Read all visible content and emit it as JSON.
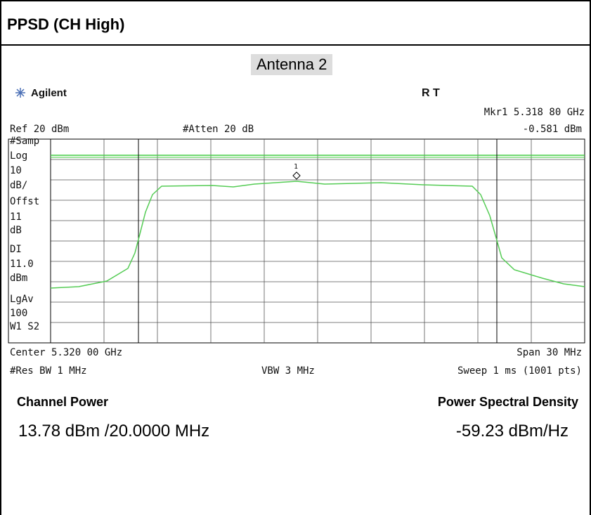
{
  "header": {
    "title": "PPSD (CH High)"
  },
  "subtitle": "Antenna 2",
  "analyzer": {
    "brand": "Agilent",
    "status": "R   T",
    "marker_freq": "Mkr1  5.318 80 GHz",
    "marker_level": "-0.581 dBm",
    "ref": "Ref 20 dBm",
    "atten": "#Atten 20 dB",
    "side_labels": [
      "#Samp",
      "Log",
      "10",
      "dB/",
      "Offst",
      "11",
      "dB",
      "DI",
      "11.0",
      "dBm",
      "LgAv",
      "100",
      "W1  S2"
    ],
    "marker_label": "1",
    "center": "Center 5.320 00 GHz",
    "span": "Span 30 MHz",
    "rbw": "#Res BW 1 MHz",
    "vbw": "VBW 3 MHz",
    "sweep": "Sweep 1 ms (1001 pts)"
  },
  "results": {
    "channel_power_label": "Channel Power",
    "psd_label": "Power Spectral Density",
    "channel_power_value": "13.78 dBm /20.0000 MHz",
    "psd_value": "-59.23 dBm/Hz"
  }
}
